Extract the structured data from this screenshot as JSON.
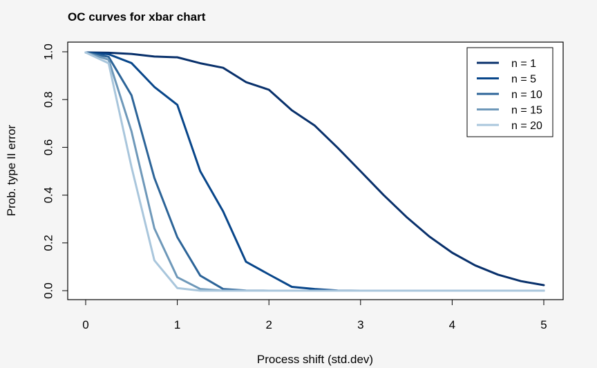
{
  "chart_data": {
    "type": "line",
    "title": "OC curves for xbar chart",
    "xlabel": "Process shift (std.dev)",
    "ylabel": "Prob. type II error",
    "xlim": [
      0,
      5
    ],
    "ylim": [
      0,
      1
    ],
    "x_ticks": [
      "0",
      "1",
      "2",
      "3",
      "4",
      "5"
    ],
    "y_ticks": [
      "0.0",
      "0.2",
      "0.4",
      "0.6",
      "0.8",
      "1.0"
    ],
    "legend_position": "top-right",
    "grid": false,
    "x": [
      0,
      0.25,
      0.5,
      0.75,
      1,
      1.25,
      1.5,
      1.75,
      2,
      2.25,
      2.5,
      2.75,
      3,
      3.25,
      3.5,
      3.75,
      4,
      4.25,
      4.5,
      4.75,
      5
    ],
    "series": [
      {
        "name": "n = 1",
        "color": "#08306b",
        "values": [
          0.997,
          0.996,
          0.991,
          0.98,
          0.977,
          0.952,
          0.933,
          0.873,
          0.841,
          0.755,
          0.691,
          0.598,
          0.5,
          0.401,
          0.309,
          0.227,
          0.159,
          0.106,
          0.067,
          0.04,
          0.023
        ]
      },
      {
        "name": "n = 5",
        "color": "#08468a",
        "values": [
          0.997,
          0.99,
          0.953,
          0.853,
          0.778,
          0.5,
          0.332,
          0.121,
          0.068,
          0.016,
          0.007,
          0.001,
          0.0,
          0,
          0,
          0,
          0,
          0,
          0,
          0,
          0
        ]
      },
      {
        "name": "n = 10",
        "color": "#2c6498",
        "values": [
          0.997,
          0.979,
          0.818,
          0.472,
          0.224,
          0.063,
          0.007,
          0.001,
          0.0,
          0,
          0,
          0,
          0,
          0,
          0,
          0,
          0,
          0,
          0,
          0,
          0
        ]
      },
      {
        "name": "n = 15",
        "color": "#6e98b9",
        "values": [
          0.997,
          0.967,
          0.667,
          0.261,
          0.056,
          0.007,
          0.0,
          0,
          0,
          0,
          0,
          0,
          0,
          0,
          0,
          0,
          0,
          0,
          0,
          0,
          0
        ]
      },
      {
        "name": "n = 20",
        "color": "#a9c6dc",
        "values": [
          0.997,
          0.952,
          0.518,
          0.127,
          0.011,
          0.0,
          0,
          0,
          0,
          0,
          0,
          0,
          0,
          0,
          0,
          0,
          0,
          0,
          0,
          0,
          0
        ]
      }
    ]
  }
}
